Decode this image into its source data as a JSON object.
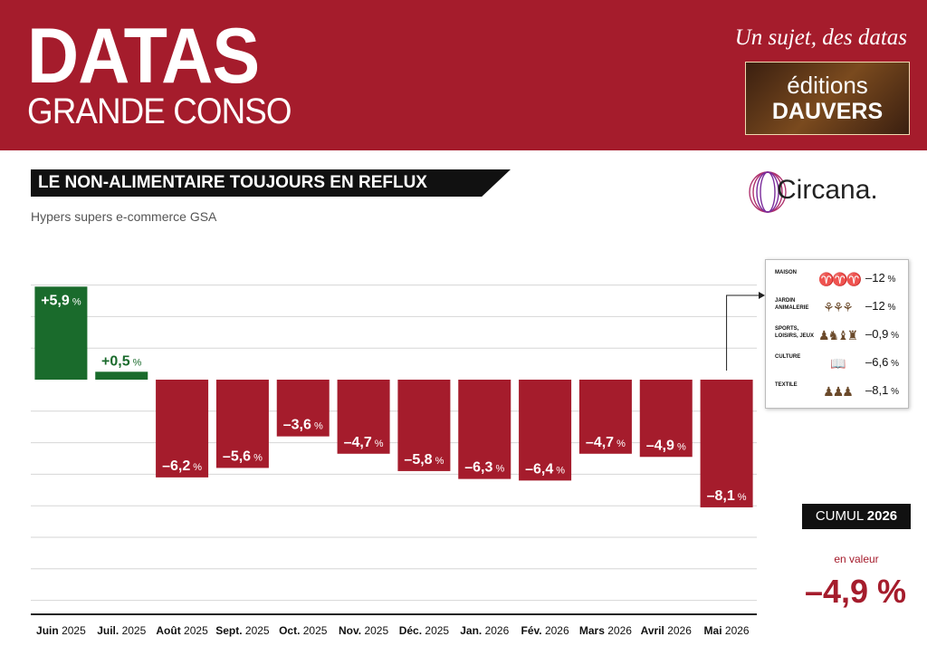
{
  "header": {
    "brand_title": "DATAS",
    "brand_subtitle": "GRANDE CONSO",
    "tagline": "Un sujet, des datas",
    "publisher_line1": "éditions",
    "publisher_line2": "DAUVERS",
    "bg_color": "#a51c2c"
  },
  "source_logo": "Circana.",
  "chart_data": {
    "type": "bar",
    "title": "LE NON-ALIMENTAIRE TOUJOURS EN REFLUX",
    "subtitle": "Hypers supers e-commerce GSA",
    "categories": [
      {
        "month": "Juin",
        "year": "2025"
      },
      {
        "month": "Juil.",
        "year": "2025"
      },
      {
        "month": "Août",
        "year": "2025"
      },
      {
        "month": "Sept.",
        "year": "2025"
      },
      {
        "month": "Oct.",
        "year": "2025"
      },
      {
        "month": "Nov.",
        "year": "2025"
      },
      {
        "month": "Déc.",
        "year": "2025"
      },
      {
        "month": "Jan.",
        "year": "2026"
      },
      {
        "month": "Fév.",
        "year": "2026"
      },
      {
        "month": "Mars",
        "year": "2026"
      },
      {
        "month": "Avril",
        "year": "2026"
      },
      {
        "month": "Mai",
        "year": "2026"
      }
    ],
    "values": [
      5.9,
      0.5,
      -6.2,
      -5.6,
      -3.6,
      -4.7,
      -5.8,
      -6.3,
      -6.4,
      -4.7,
      -4.9,
      -8.1
    ],
    "labels": [
      "+5,9",
      "+0,5",
      "–6,2",
      "–5,6",
      "–3,6",
      "–4,7",
      "–5,8",
      "–6,3",
      "–6,4",
      "–4,7",
      "–4,9",
      "–8,1"
    ],
    "unit": "%",
    "ylim": [
      -14,
      6
    ],
    "grid": true,
    "colors": {
      "positive": "#1a6b2c",
      "negative": "#a51c2c"
    }
  },
  "detail_panel": {
    "rows": [
      {
        "name": "MAISON",
        "value": "–12",
        "unit": "%",
        "icon": "lamp-icon"
      },
      {
        "name": "JARDIN ANIMALERIE",
        "value": "–12",
        "unit": "%",
        "icon": "plant-icon"
      },
      {
        "name": "SPORTS, LOISIRS, JEUX",
        "value": "–0,9",
        "unit": "%",
        "icon": "chess-icon"
      },
      {
        "name": "CULTURE",
        "value": "–6,6",
        "unit": "%",
        "icon": "book-icon"
      },
      {
        "name": "TEXTILE",
        "value": "–8,1",
        "unit": "%",
        "icon": "clothing-icon"
      }
    ]
  },
  "cumul": {
    "label": "CUMUL",
    "year": "2026",
    "sub": "en valeur",
    "value": "–4,9 %"
  }
}
